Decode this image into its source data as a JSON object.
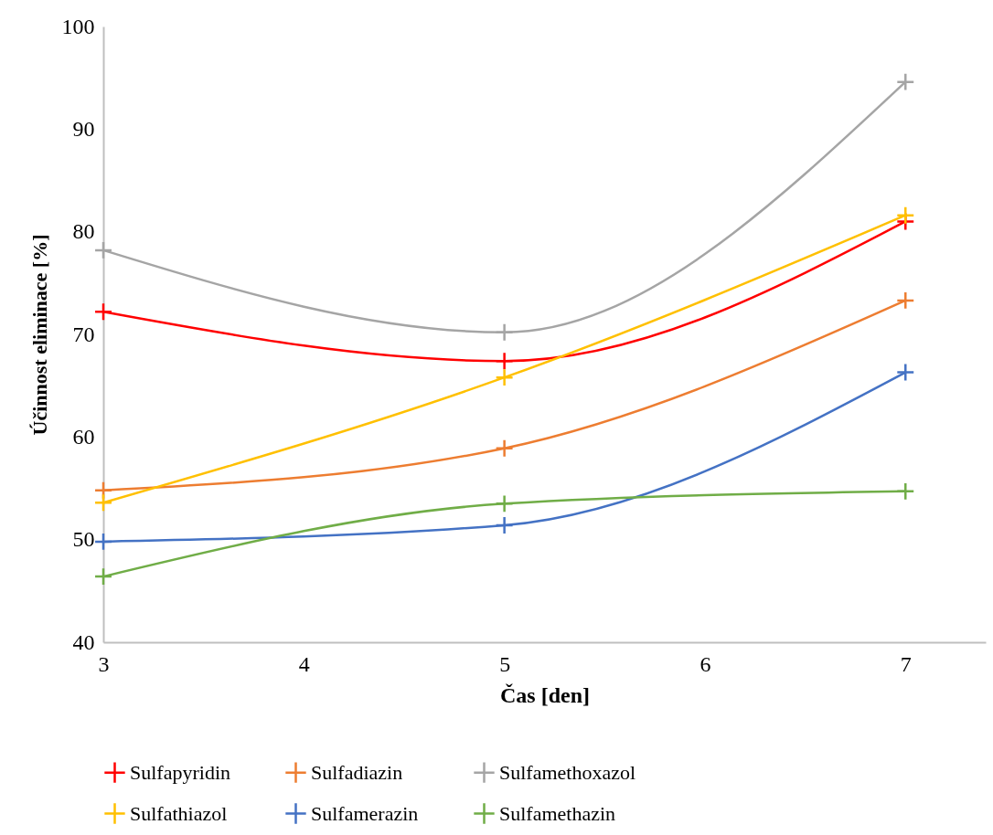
{
  "chart_data": {
    "type": "line",
    "xlabel": "Čas [den]",
    "ylabel": "Účinnost eliminace [%]",
    "x": [
      3,
      5,
      7
    ],
    "xlim": [
      3,
      7.4
    ],
    "xticks": [
      3,
      4,
      5,
      6,
      7
    ],
    "ylim": [
      40,
      100
    ],
    "yticks": [
      40,
      50,
      60,
      70,
      80,
      90,
      100
    ],
    "grid": false,
    "legend": "bottom",
    "marker": "cross",
    "line_style": "solid",
    "series": [
      {
        "name": "Sulfapyridin",
        "color": "#ff0000",
        "values": [
          72.2,
          67.4,
          81.0
        ]
      },
      {
        "name": "Sulfadiazin",
        "color": "#ed7d31",
        "values": [
          54.8,
          58.9,
          73.3
        ]
      },
      {
        "name": "Sulfamethoxazol",
        "color": "#a5a5a5",
        "values": [
          78.2,
          70.2,
          94.6
        ]
      },
      {
        "name": "Sulfathiazol",
        "color": "#ffc000",
        "values": [
          53.6,
          65.8,
          81.6
        ]
      },
      {
        "name": "Sulfamerazin",
        "color": "#4472c4",
        "values": [
          49.8,
          51.4,
          66.3
        ]
      },
      {
        "name": "Sulfamethazin",
        "color": "#70ad47",
        "values": [
          46.4,
          53.5,
          54.7
        ]
      }
    ]
  }
}
